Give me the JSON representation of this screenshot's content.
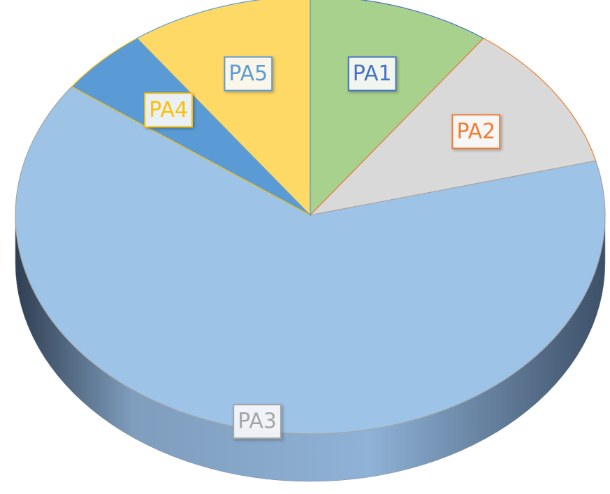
{
  "chart_data": {
    "type": "pie",
    "categories": [
      "PA1",
      "PA2",
      "PA3",
      "PA4",
      "PA5"
    ],
    "values": [
      10,
      11,
      64,
      5,
      10
    ],
    "colors": [
      "#a9d18e",
      "#d9d9d9",
      "#9dc3e6",
      "#5b9bd5",
      "#ffd966"
    ],
    "label_colors": [
      "#4472c4",
      "#ed7d31",
      "#a5a5a5",
      "#ffc000",
      "#5b9bd5"
    ]
  }
}
